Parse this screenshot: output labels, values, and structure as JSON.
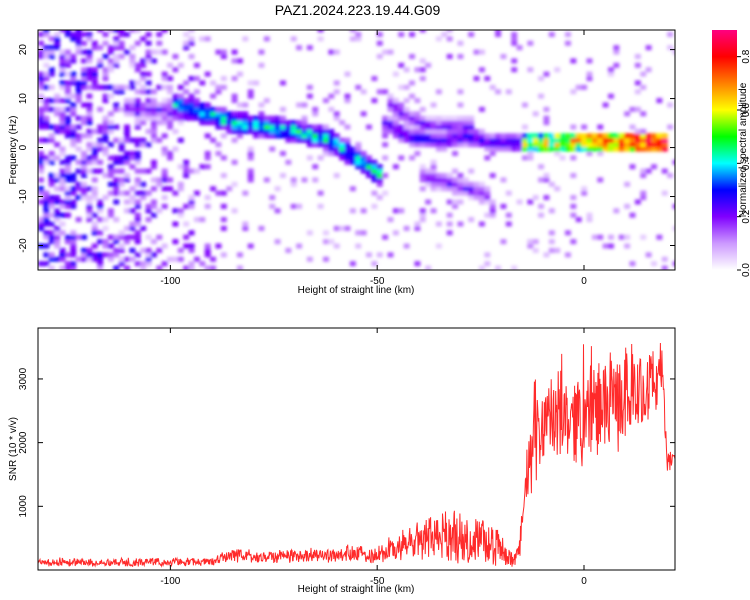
{
  "title": "PAZ1.2024.223.19.44.G09",
  "chart_data": [
    {
      "type": "heatmap",
      "title": "PAZ1.2024.223.19.44.G09",
      "xlabel": "Height of straight line (km)",
      "ylabel": "Frequency (Hz)",
      "xlim": [
        -132,
        22
      ],
      "ylim": [
        -25,
        24
      ],
      "xticks": [
        -100,
        -50,
        0
      ],
      "yticks": [
        -20,
        -10,
        0,
        10,
        20
      ],
      "colorbar": {
        "label": "Normalized spectral amplitude",
        "range": [
          0.0,
          0.9
        ],
        "ticks": [
          "0.0",
          "0.2",
          "0.4",
          "0.6",
          "0.8"
        ],
        "tick_values": [
          0.0,
          0.2,
          0.4,
          0.6,
          0.8
        ],
        "colormap": [
          "#ffffff",
          "#cc99ff",
          "#8000ff",
          "#0000ff",
          "#00ffff",
          "#00ff00",
          "#ffff00",
          "#ff8000",
          "#ff0000",
          "#ff0080"
        ]
      },
      "main_ridge": [
        [
          -100,
          8.5
        ],
        [
          -92,
          6.5
        ],
        [
          -85,
          4.5
        ],
        [
          -78,
          4
        ],
        [
          -70,
          3
        ],
        [
          -62,
          1
        ],
        [
          -55,
          -3
        ],
        [
          -50,
          -6
        ]
      ],
      "secondary_ridges": [
        [
          [
            -50,
            5
          ],
          [
            -42,
            1.5
          ],
          [
            -35,
            1
          ],
          [
            -30,
            2
          ],
          [
            -22,
            0.5
          ],
          [
            -18,
            0.5
          ],
          [
            -12,
            0.5
          ],
          [
            0,
            1
          ],
          [
            10,
            1
          ],
          [
            20,
            0.5
          ]
        ],
        [
          [
            -112,
            8
          ],
          [
            -105,
            7
          ],
          [
            -98,
            8.5
          ]
        ],
        [
          [
            -40,
            -6
          ],
          [
            -32,
            -8
          ],
          [
            -24,
            -10
          ],
          [
            -22,
            -15
          ]
        ],
        [
          [
            -48,
            9
          ],
          [
            -44,
            6
          ],
          [
            -38,
            4
          ],
          [
            -28,
            4
          ]
        ]
      ]
    },
    {
      "type": "line",
      "xlabel": "Height of straight line (km)",
      "ylabel": "SNR (10 * v/v)",
      "xlim": [
        -132,
        22
      ],
      "ylim": [
        0,
        3800
      ],
      "xticks": [
        -100,
        -50,
        0
      ],
      "yticks": [
        1000,
        2000,
        3000
      ],
      "line_color": "#ff2a2a",
      "envelope": {
        "x": [
          -132,
          -110,
          -90,
          -85,
          -80,
          -70,
          -60,
          -50,
          -45,
          -40,
          -35,
          -30,
          -25,
          -20,
          -17,
          -16,
          -14,
          -12,
          -10,
          -5,
          0,
          5,
          10,
          15,
          18,
          19,
          20,
          22
        ],
        "mean": [
          120,
          120,
          130,
          250,
          200,
          230,
          230,
          250,
          350,
          450,
          550,
          500,
          450,
          350,
          120,
          250,
          1300,
          2000,
          2300,
          2400,
          2400,
          2600,
          2700,
          2900,
          3000,
          3200,
          1700,
          1700
        ],
        "amplitude": [
          70,
          70,
          70,
          130,
          120,
          120,
          120,
          170,
          250,
          350,
          420,
          450,
          400,
          300,
          100,
          200,
          600,
          700,
          750,
          800,
          800,
          900,
          800,
          700,
          550,
          400,
          200,
          200
        ]
      }
    }
  ]
}
